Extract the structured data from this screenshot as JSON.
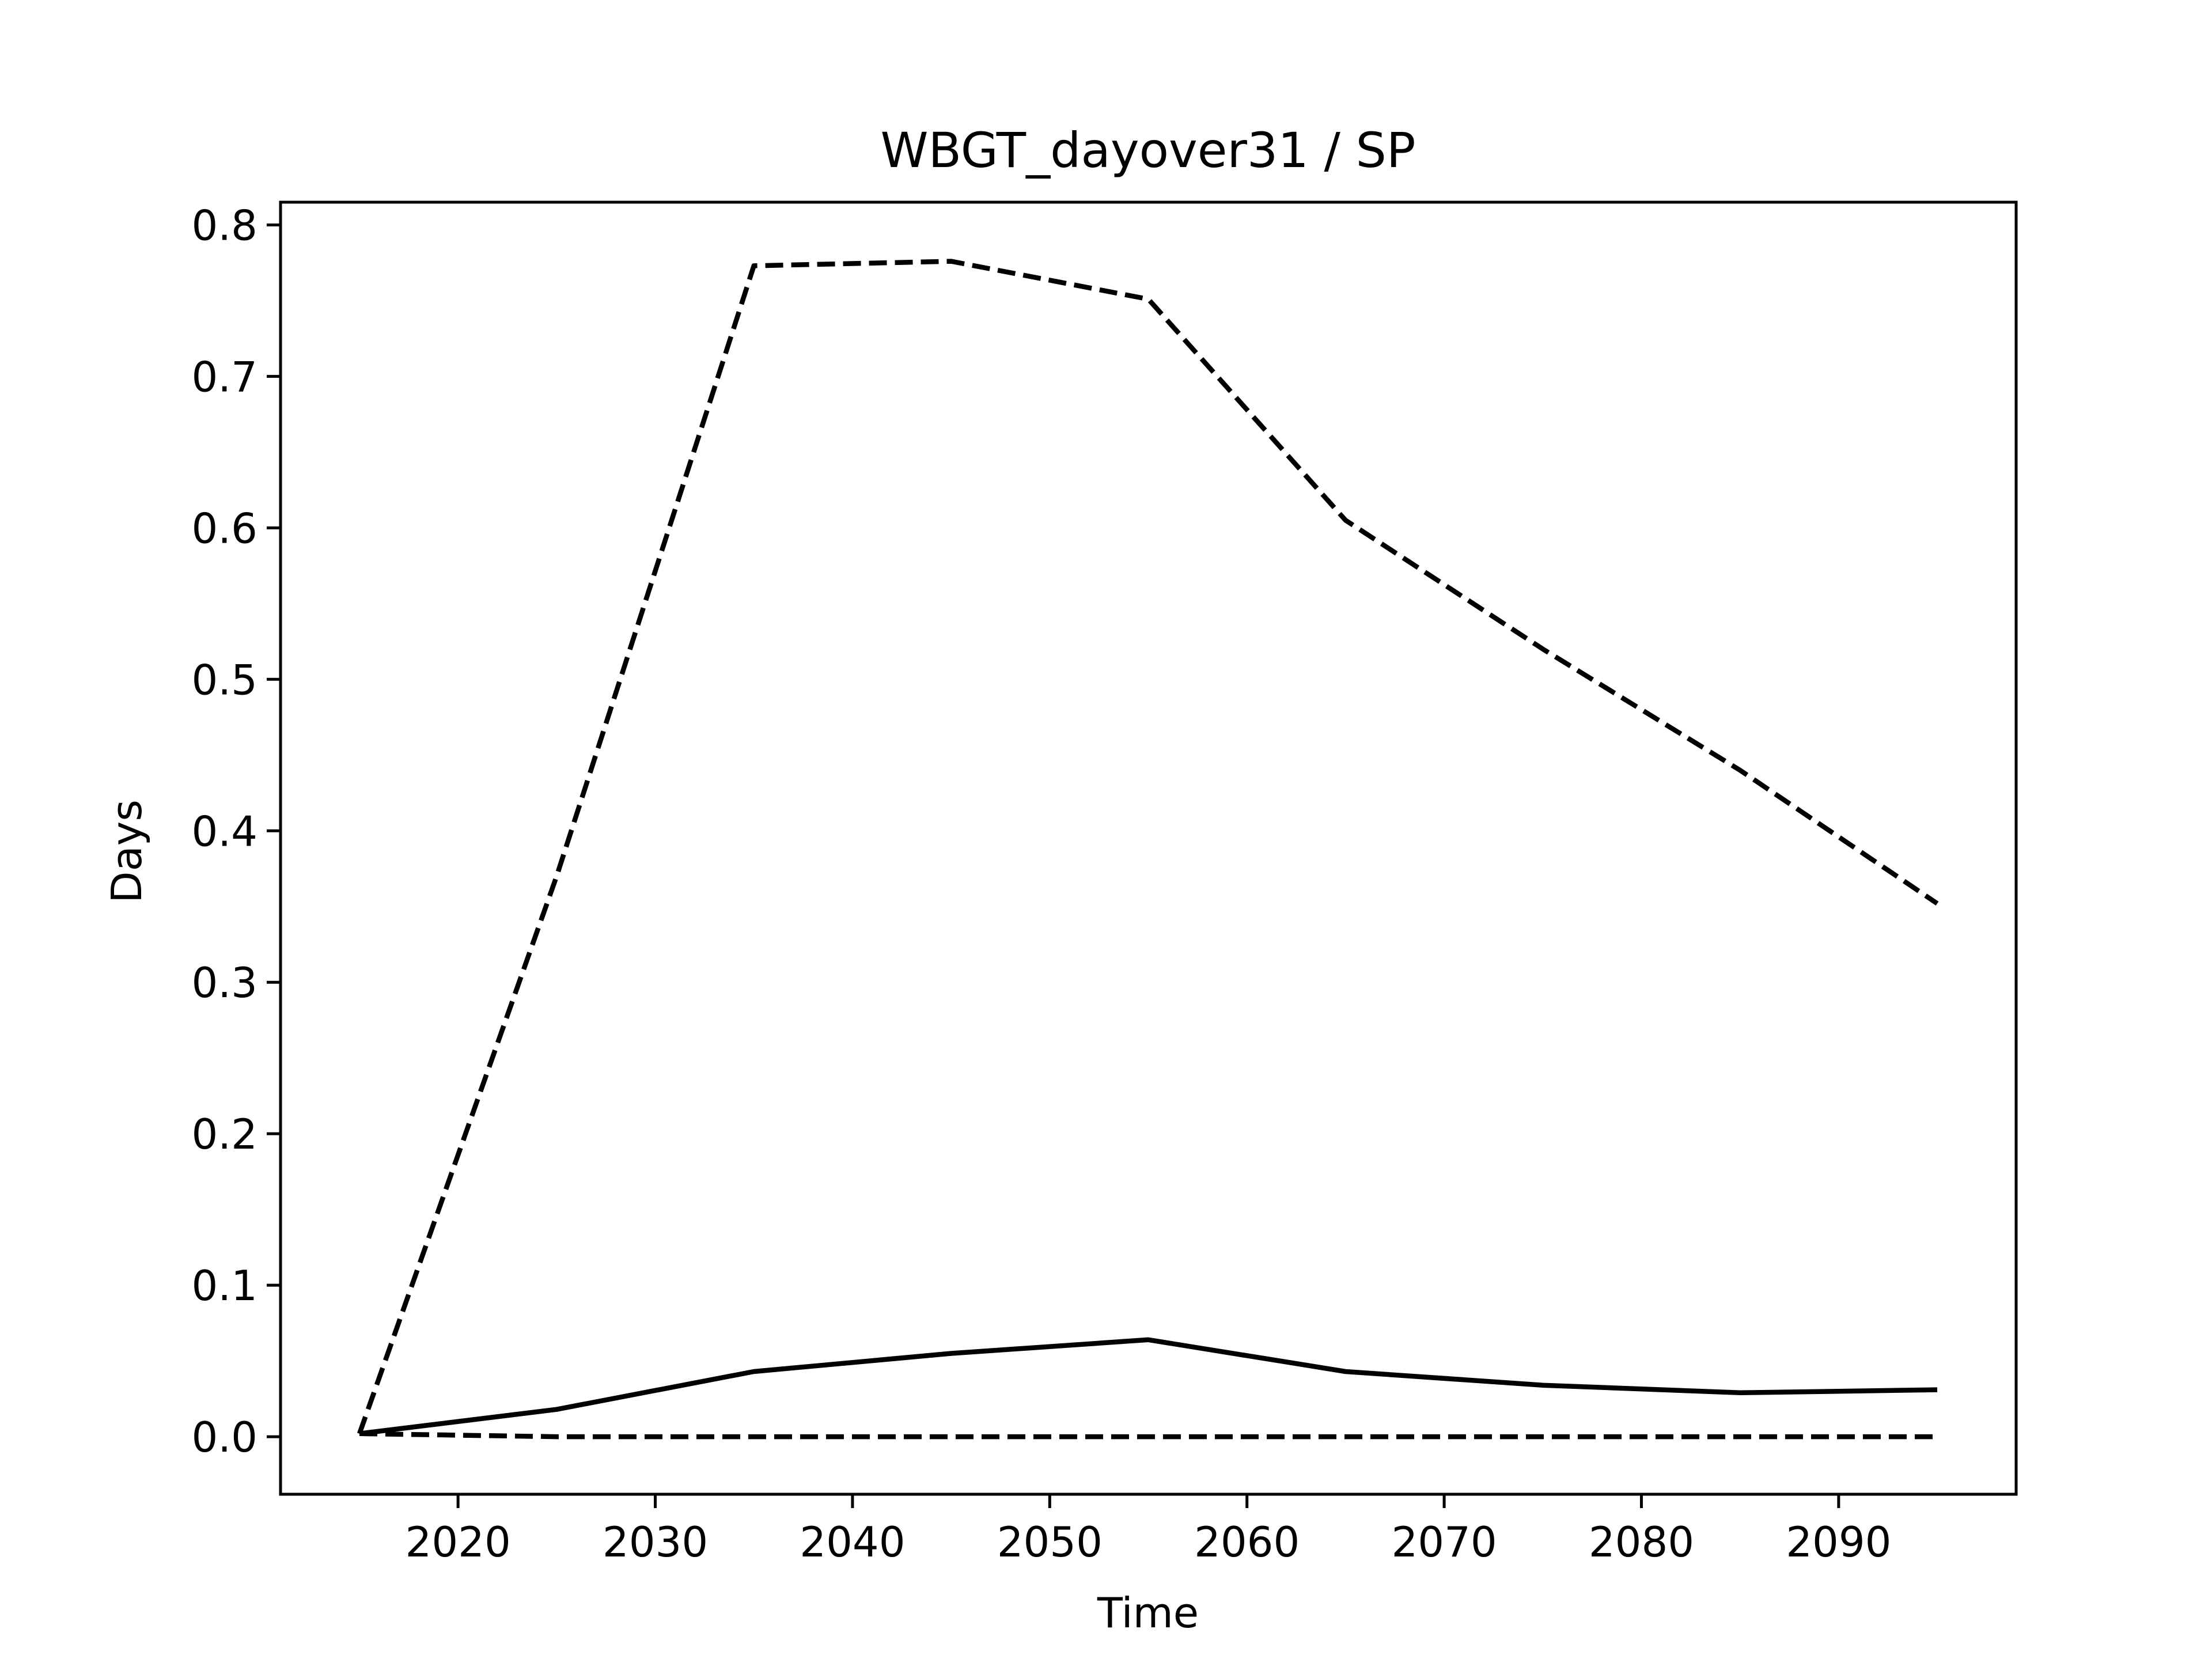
{
  "chart_data": {
    "type": "line",
    "title": "WBGT_dayover31 / SP",
    "xlabel": "Time",
    "ylabel": "Days",
    "xlim": [
      2011,
      2099
    ],
    "ylim": [
      -0.038,
      0.815
    ],
    "xticks": [
      2020,
      2030,
      2040,
      2050,
      2060,
      2070,
      2080,
      2090
    ],
    "yticks": [
      0.0,
      0.1,
      0.2,
      0.3,
      0.4,
      0.5,
      0.6,
      0.7,
      0.8
    ],
    "ytick_labels": [
      "0.0",
      "0.1",
      "0.2",
      "0.3",
      "0.4",
      "0.5",
      "0.6",
      "0.7",
      "0.8"
    ],
    "grid": false,
    "legend": false,
    "x": [
      2015,
      2025,
      2035,
      2045,
      2055,
      2065,
      2075,
      2085,
      2095
    ],
    "series": [
      {
        "color": "#000000",
        "style": "dashed",
        "values": [
          0.002,
          0.37,
          0.773,
          0.776,
          0.751,
          0.605,
          0.52,
          0.44,
          0.352
        ]
      },
      {
        "color": "#000000",
        "style": "solid",
        "values": [
          0.002,
          0.018,
          0.043,
          0.055,
          0.064,
          0.043,
          0.034,
          0.029,
          0.031
        ]
      },
      {
        "color": "#000000",
        "style": "dashed",
        "values": [
          0.002,
          0.0,
          0.0,
          0.0,
          0.0,
          0.0,
          0.0,
          0.0,
          0.0
        ]
      }
    ]
  }
}
